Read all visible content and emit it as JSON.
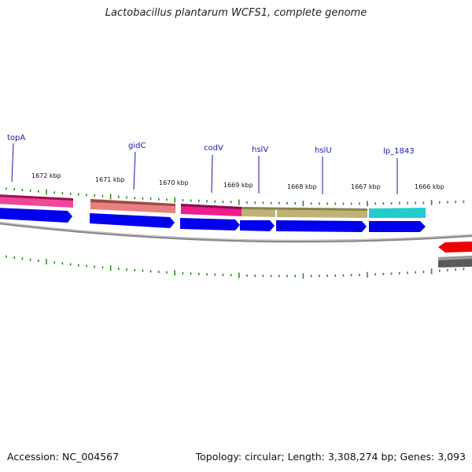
{
  "title": "Lactobacillus plantarum WCFS1, complete genome",
  "footer": {
    "accession": "Accession: NC_004567",
    "summary": "Topology: circular; Length: 3,308,274 bp; Genes: 3,093"
  },
  "colors": {
    "cds": "#0000ee",
    "gene_topA": "#f0479a",
    "gene_gidC": "#e88080",
    "gene_codV": "#ee1c8c",
    "gene_hslV": "#bdb377",
    "gene_hslU": "#bdb377",
    "gene_lp_1843": "#22cccc",
    "backbone": "#8a8a8a",
    "tick": "#2e8b22",
    "label": "#1a1aa6"
  },
  "gene_labels": [
    "topA",
    "gidC",
    "codV",
    "hslV",
    "hslU",
    "lp_1843"
  ],
  "kbp_labels": [
    "1672 kbp",
    "1671 kbp",
    "1670 kbp",
    "1669 kbp",
    "1668 kbp",
    "1667 kbp",
    "1666 kbp"
  ]
}
